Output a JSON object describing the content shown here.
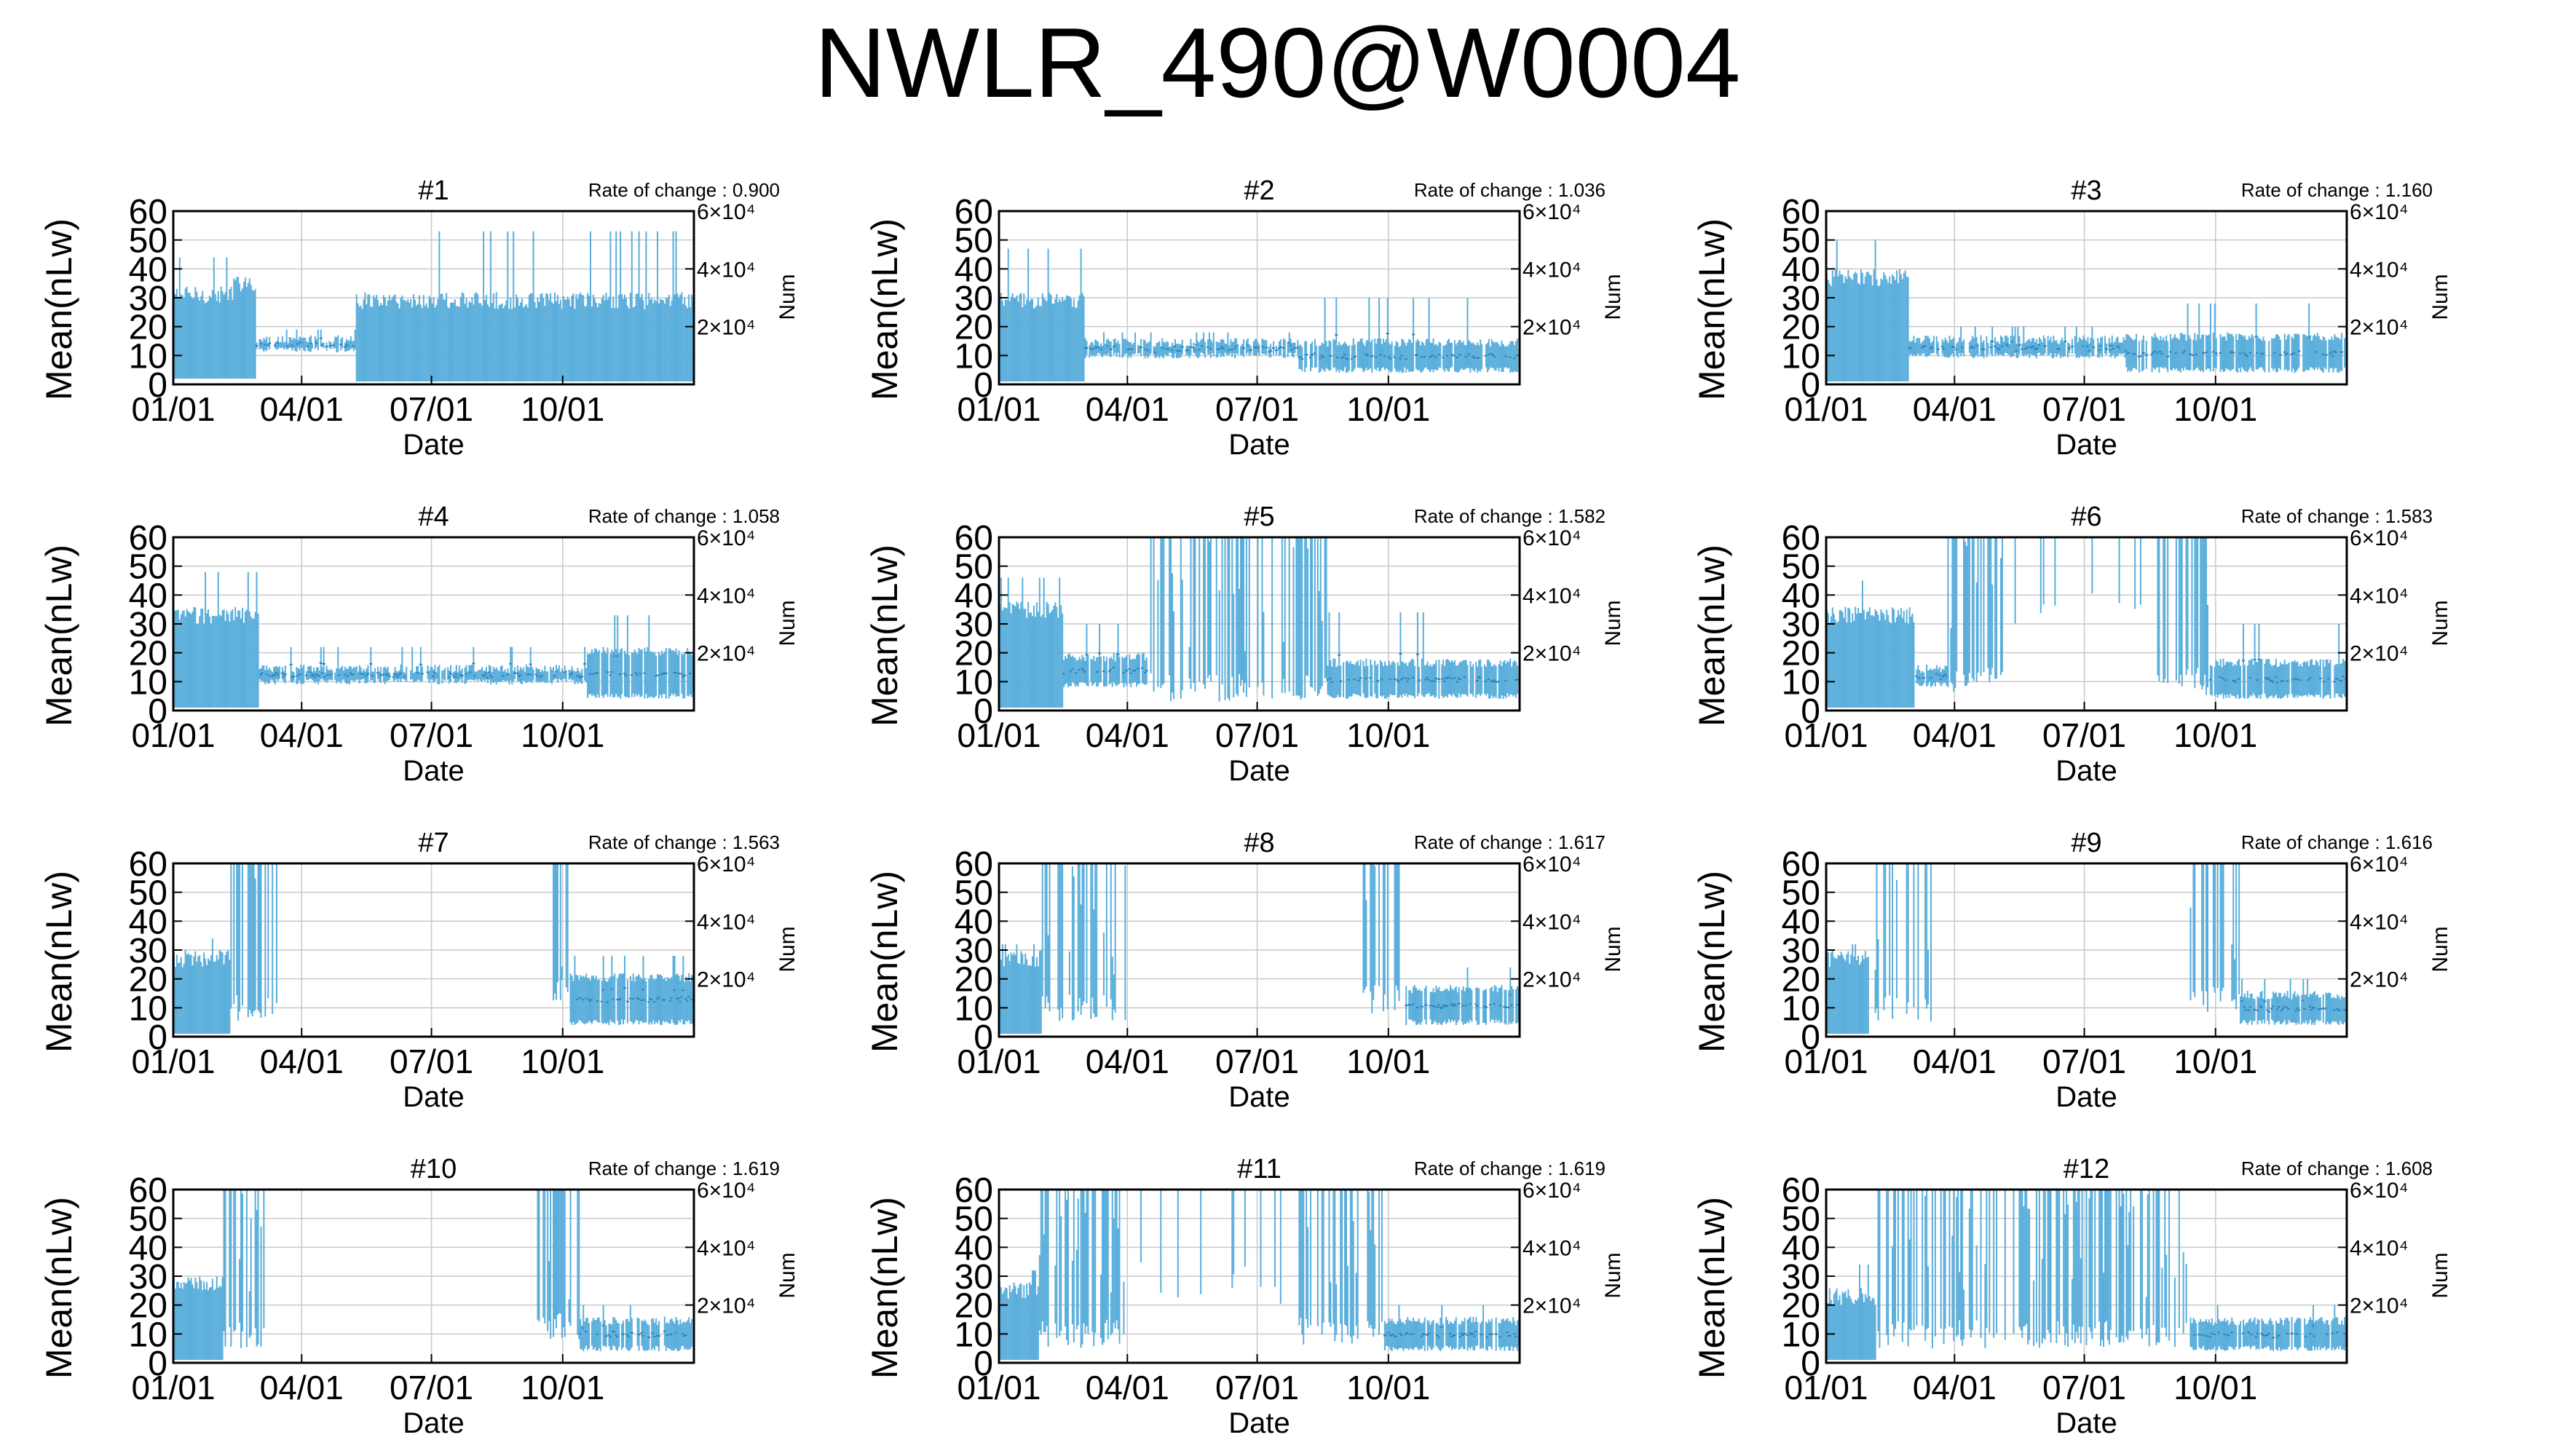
{
  "title": "NWLR_490@W0004",
  "common": {
    "ylabel": "Mean(nLw)",
    "xlabel": "Date",
    "y2label": "Num",
    "yticks": [
      "0",
      "10",
      "20",
      "30",
      "40",
      "50",
      "60"
    ],
    "xticks": [
      "01/01",
      "04/01",
      "07/01",
      "10/01"
    ],
    "y2ticks": [
      "2×10⁴",
      "4×10⁴",
      "6×10⁴"
    ],
    "rate_prefix": "Rate of change : "
  },
  "colors": {
    "series": "#5aaedb",
    "grid": "#c8c8c8",
    "axis": "#000000"
  },
  "chart_data": [
    {
      "type": "bar",
      "title": "#1",
      "rate": "0.900",
      "ylim": [
        0,
        60
      ],
      "y2lim": [
        0,
        60000
      ],
      "xlim": [
        0,
        365
      ],
      "segments": [
        {
          "x": [
            0,
            42
          ],
          "low": 2,
          "high": 32,
          "peak": 44,
          "mode": "solid"
        },
        {
          "x": [
            42,
            58
          ],
          "low": 2,
          "high": 36,
          "peak": 37,
          "mode": "solid"
        },
        {
          "x": [
            58,
            128
          ],
          "low": 11,
          "high": 17,
          "peak": 19,
          "mode": "band"
        },
        {
          "x": [
            128,
            365
          ],
          "low": 1,
          "high": 30,
          "peak": 53,
          "mode": "solid"
        }
      ]
    },
    {
      "type": "bar",
      "title": "#2",
      "rate": "1.036",
      "ylim": [
        0,
        60
      ],
      "y2lim": [
        0,
        60000
      ],
      "xlim": [
        0,
        365
      ],
      "segments": [
        {
          "x": [
            0,
            60
          ],
          "low": 1,
          "high": 30,
          "peak": 47,
          "mode": "solid"
        },
        {
          "x": [
            60,
            210
          ],
          "low": 9,
          "high": 16,
          "peak": 18,
          "mode": "band"
        },
        {
          "x": [
            210,
            365
          ],
          "low": 4,
          "high": 16,
          "peak": 30,
          "mode": "band"
        }
      ]
    },
    {
      "type": "bar",
      "title": "#3",
      "rate": "1.160",
      "ylim": [
        0,
        60
      ],
      "y2lim": [
        0,
        60000
      ],
      "xlim": [
        0,
        365
      ],
      "segments": [
        {
          "x": [
            0,
            58
          ],
          "low": 1,
          "high": 38,
          "peak": 50,
          "mode": "solid"
        },
        {
          "x": [
            58,
            210
          ],
          "low": 9,
          "high": 17,
          "peak": 20,
          "mode": "band"
        },
        {
          "x": [
            210,
            365
          ],
          "low": 4,
          "high": 18,
          "peak": 28,
          "mode": "band"
        }
      ]
    },
    {
      "type": "bar",
      "title": "#4",
      "rate": "1.058",
      "ylim": [
        0,
        60
      ],
      "y2lim": [
        0,
        60000
      ],
      "xlim": [
        0,
        365
      ],
      "segments": [
        {
          "x": [
            0,
            60
          ],
          "low": 1,
          "high": 34,
          "peak": 48,
          "mode": "solid"
        },
        {
          "x": [
            60,
            290
          ],
          "low": 9,
          "high": 16,
          "peak": 22,
          "mode": "band"
        },
        {
          "x": [
            290,
            365
          ],
          "low": 4,
          "high": 22,
          "peak": 33,
          "mode": "band"
        }
      ]
    },
    {
      "type": "bar",
      "title": "#5",
      "rate": "1.582",
      "ylim": [
        0,
        60
      ],
      "y2lim": [
        0,
        60000
      ],
      "xlim": [
        0,
        365
      ],
      "segments": [
        {
          "x": [
            0,
            45
          ],
          "low": 1,
          "high": 36,
          "peak": 46,
          "mode": "solid"
        },
        {
          "x": [
            45,
            105
          ],
          "low": 8,
          "high": 20,
          "peak": 30,
          "mode": "band"
        },
        {
          "x": [
            105,
            230
          ],
          "low": 3,
          "high": 60,
          "peak": 60,
          "mode": "sparse"
        },
        {
          "x": [
            230,
            365
          ],
          "low": 4,
          "high": 18,
          "peak": 34,
          "mode": "band"
        }
      ]
    },
    {
      "type": "bar",
      "title": "#6",
      "rate": "1.583",
      "ylim": [
        0,
        60
      ],
      "y2lim": [
        0,
        60000
      ],
      "xlim": [
        0,
        365
      ],
      "segments": [
        {
          "x": [
            0,
            62
          ],
          "low": 1,
          "high": 34,
          "peak": 45,
          "mode": "solid"
        },
        {
          "x": [
            62,
            85
          ],
          "low": 8,
          "high": 16,
          "peak": 20,
          "mode": "band"
        },
        {
          "x": [
            85,
            125
          ],
          "low": 5,
          "high": 60,
          "peak": 60,
          "mode": "sparse"
        },
        {
          "x": [
            125,
            230
          ],
          "low": 30,
          "high": 60,
          "peak": 60,
          "mode": "rare"
        },
        {
          "x": [
            230,
            268
          ],
          "low": 5,
          "high": 60,
          "peak": 60,
          "mode": "sparse"
        },
        {
          "x": [
            268,
            365
          ],
          "low": 4,
          "high": 18,
          "peak": 30,
          "mode": "band"
        }
      ]
    },
    {
      "type": "bar",
      "title": "#7",
      "rate": "1.563",
      "ylim": [
        0,
        60
      ],
      "y2lim": [
        0,
        60000
      ],
      "xlim": [
        0,
        365
      ],
      "segments": [
        {
          "x": [
            0,
            40
          ],
          "low": 1,
          "high": 28,
          "peak": 34,
          "mode": "solid"
        },
        {
          "x": [
            40,
            75
          ],
          "low": 5,
          "high": 60,
          "peak": 60,
          "mode": "sparse"
        },
        {
          "x": [
            265,
            278
          ],
          "low": 10,
          "high": 60,
          "peak": 60,
          "mode": "sparse"
        },
        {
          "x": [
            278,
            365
          ],
          "low": 4,
          "high": 22,
          "peak": 28,
          "mode": "band"
        }
      ]
    },
    {
      "type": "bar",
      "title": "#8",
      "rate": "1.617",
      "ylim": [
        0,
        60
      ],
      "y2lim": [
        0,
        60000
      ],
      "xlim": [
        0,
        365
      ],
      "segments": [
        {
          "x": [
            0,
            30
          ],
          "low": 1,
          "high": 28,
          "peak": 32,
          "mode": "solid"
        },
        {
          "x": [
            30,
            90
          ],
          "low": 5,
          "high": 60,
          "peak": 60,
          "mode": "sparse"
        },
        {
          "x": [
            255,
            285
          ],
          "low": 8,
          "high": 60,
          "peak": 60,
          "mode": "sparse"
        },
        {
          "x": [
            285,
            365
          ],
          "low": 4,
          "high": 18,
          "peak": 24,
          "mode": "band"
        }
      ]
    },
    {
      "type": "bar",
      "title": "#9",
      "rate": "1.616",
      "ylim": [
        0,
        60
      ],
      "y2lim": [
        0,
        60000
      ],
      "xlim": [
        0,
        365
      ],
      "segments": [
        {
          "x": [
            0,
            30
          ],
          "low": 1,
          "high": 28,
          "peak": 32,
          "mode": "solid"
        },
        {
          "x": [
            30,
            75
          ],
          "low": 5,
          "high": 60,
          "peak": 60,
          "mode": "sparse"
        },
        {
          "x": [
            255,
            290
          ],
          "low": 8,
          "high": 60,
          "peak": 60,
          "mode": "sparse"
        },
        {
          "x": [
            290,
            365
          ],
          "low": 4,
          "high": 16,
          "peak": 20,
          "mode": "band"
        }
      ]
    },
    {
      "type": "bar",
      "title": "#10",
      "rate": "1.619",
      "ylim": [
        0,
        60
      ],
      "y2lim": [
        0,
        60000
      ],
      "xlim": [
        0,
        365
      ],
      "segments": [
        {
          "x": [
            0,
            35
          ],
          "low": 1,
          "high": 28,
          "peak": 32,
          "mode": "solid"
        },
        {
          "x": [
            35,
            65
          ],
          "low": 5,
          "high": 60,
          "peak": 60,
          "mode": "sparse"
        },
        {
          "x": [
            255,
            285
          ],
          "low": 8,
          "high": 60,
          "peak": 60,
          "mode": "sparse"
        },
        {
          "x": [
            285,
            365
          ],
          "low": 4,
          "high": 16,
          "peak": 20,
          "mode": "band"
        }
      ]
    },
    {
      "type": "bar",
      "title": "#11",
      "rate": "1.619",
      "ylim": [
        0,
        60
      ],
      "y2lim": [
        0,
        60000
      ],
      "xlim": [
        0,
        365
      ],
      "segments": [
        {
          "x": [
            0,
            28
          ],
          "low": 1,
          "high": 26,
          "peak": 32,
          "mode": "solid"
        },
        {
          "x": [
            28,
            90
          ],
          "low": 5,
          "high": 60,
          "peak": 60,
          "mode": "sparse"
        },
        {
          "x": [
            90,
            210
          ],
          "low": 20,
          "high": 60,
          "peak": 60,
          "mode": "rare"
        },
        {
          "x": [
            210,
            270
          ],
          "low": 6,
          "high": 60,
          "peak": 60,
          "mode": "sparse"
        },
        {
          "x": [
            270,
            365
          ],
          "low": 4,
          "high": 16,
          "peak": 20,
          "mode": "band"
        }
      ]
    },
    {
      "type": "bar",
      "title": "#12",
      "rate": "1.608",
      "ylim": [
        0,
        60
      ],
      "y2lim": [
        0,
        60000
      ],
      "xlim": [
        0,
        365
      ],
      "segments": [
        {
          "x": [
            0,
            35
          ],
          "low": 1,
          "high": 24,
          "peak": 34,
          "mode": "solid"
        },
        {
          "x": [
            35,
            255
          ],
          "low": 5,
          "high": 60,
          "peak": 60,
          "mode": "sparse"
        },
        {
          "x": [
            255,
            365
          ],
          "low": 4,
          "high": 16,
          "peak": 20,
          "mode": "band"
        }
      ]
    }
  ]
}
